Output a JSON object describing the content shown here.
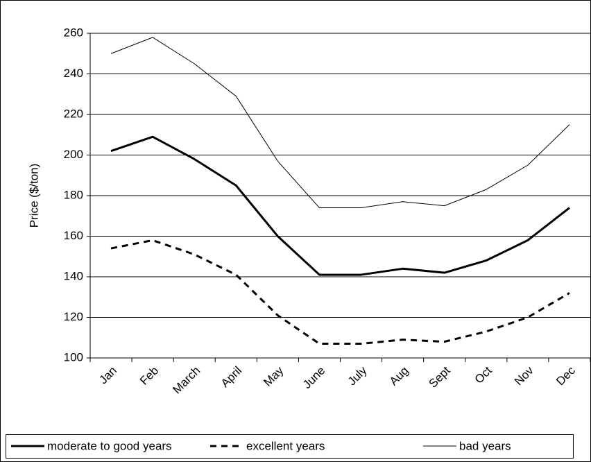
{
  "chart_data": {
    "type": "line",
    "y_label": "Price ($/ton)",
    "categories": [
      "Jan",
      "Feb",
      "March",
      "April",
      "May",
      "June",
      "July",
      "Aug",
      "Sept",
      "Oct",
      "Nov",
      "Dec"
    ],
    "series": [
      {
        "name": "moderate to good years",
        "color": "#000000",
        "linestyle": "solid",
        "values": [
          202,
          209,
          198,
          185,
          160,
          141,
          141,
          144,
          142,
          148,
          158,
          174
        ]
      },
      {
        "name": "excellent years",
        "color": "#000000",
        "linestyle": "dashed",
        "values": [
          154,
          158,
          151,
          141,
          121,
          107,
          107,
          109,
          108,
          113,
          120,
          132
        ]
      },
      {
        "name": "bad years",
        "color": "#000000",
        "linestyle": "solid",
        "values": [
          250,
          258,
          245,
          229,
          197,
          174,
          174,
          177,
          175,
          183,
          195,
          215
        ]
      }
    ],
    "ylim": [
      100,
      260
    ],
    "yticks": [
      100,
      120,
      140,
      160,
      180,
      200,
      220,
      240,
      260
    ],
    "grid": true,
    "legend": "bottom"
  }
}
